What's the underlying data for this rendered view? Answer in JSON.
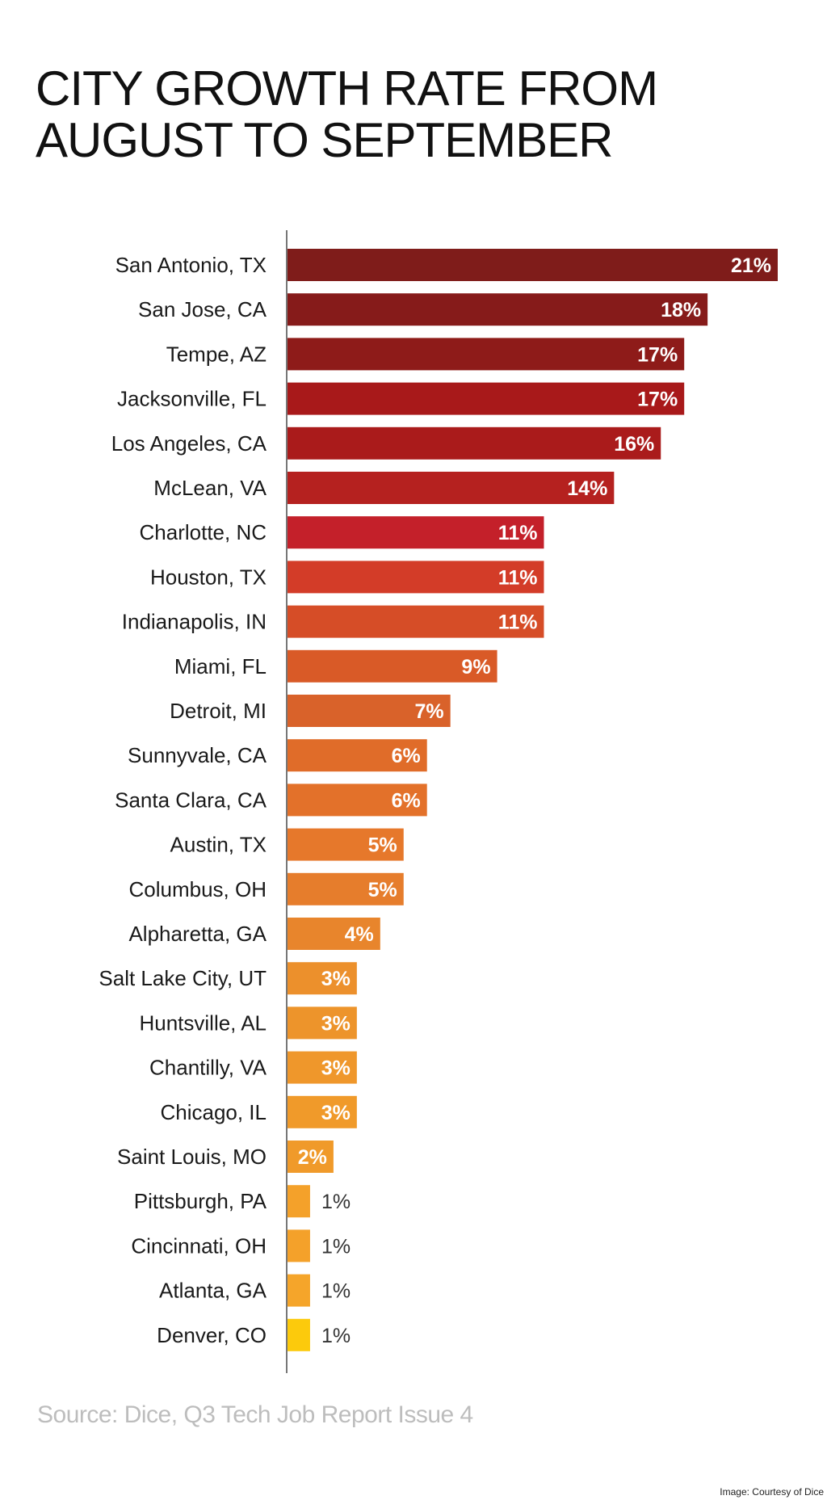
{
  "chart_data": {
    "type": "bar",
    "orientation": "horizontal",
    "title": "CITY GROWTH RATE FROM AUGUST TO SEPTEMBER",
    "title_lines": [
      "CITY GROWTH RATE FROM",
      "AUGUST TO SEPTEMBER"
    ],
    "categories": [
      "San Antonio, TX",
      "San Jose, CA",
      "Tempe, AZ",
      "Jacksonville, FL",
      "Los Angeles, CA",
      "McLean, VA",
      "Charlotte, NC",
      "Houston, TX",
      "Indianapolis, IN",
      "Miami, FL",
      "Detroit, MI",
      "Sunnyvale, CA",
      "Santa Clara, CA",
      "Austin, TX",
      "Columbus, OH",
      "Alpharetta, GA",
      "Salt Lake City, UT",
      "Huntsville, AL",
      "Chantilly, VA",
      "Chicago, IL",
      "Saint Louis, MO",
      "Pittsburgh, PA",
      "Cincinnati, OH",
      "Atlanta, GA",
      "Denver, CO"
    ],
    "values": [
      21,
      18,
      17,
      17,
      16,
      14,
      11,
      11,
      11,
      9,
      7,
      6,
      6,
      5,
      5,
      4,
      3,
      3,
      3,
      3,
      2,
      1,
      1,
      1,
      1
    ],
    "labels": [
      "21%",
      "18%",
      "17%",
      "17%",
      "16%",
      "14%",
      "11%",
      "11%",
      "11%",
      "9%",
      "7%",
      "6%",
      "6%",
      "5%",
      "5%",
      "4%",
      "3%",
      "3%",
      "3%",
      "3%",
      "2%",
      "1%",
      "1%",
      "1%",
      "1%"
    ],
    "colors": [
      "#7f1c1a",
      "#861b1a",
      "#8e1b19",
      "#a8191a",
      "#aa1b1b",
      "#b5211f",
      "#c4202a",
      "#d33c28",
      "#d64d27",
      "#d95a27",
      "#d9622a",
      "#e06c29",
      "#e3712a",
      "#e6782b",
      "#e67d2c",
      "#e8852c",
      "#ec902c",
      "#ed942b",
      "#ef972b",
      "#f09a2a",
      "#f09a2a",
      "#f4a12a",
      "#f4a12a",
      "#f5a52a",
      "#fcca0c"
    ],
    "xlim": [
      0,
      21
    ],
    "grid": false,
    "legend": "none"
  },
  "source": "Source: Dice, Q3 Tech Job Report Issue 4",
  "credit": "Image: Courtesy of Dice"
}
